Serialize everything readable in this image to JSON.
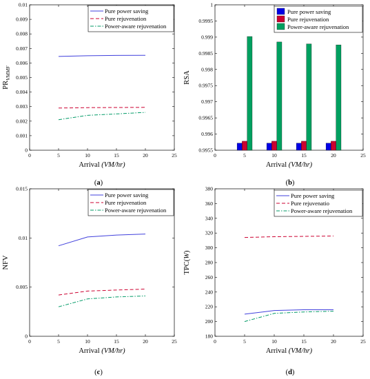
{
  "figure_caption_labels": [
    "(a)",
    "(b)",
    "(c)",
    "(d)"
  ],
  "chart_data": [
    {
      "panel": "(a)",
      "type": "line",
      "xlabel": "Arrival ",
      "xlabel_unit": "(VM/hr)",
      "ylabel_main": "PR",
      "ylabel_sub": "VMMF",
      "xlim": [
        0,
        25
      ],
      "ylim": [
        0,
        0.01
      ],
      "xticks": [
        0,
        5,
        10,
        15,
        20,
        25
      ],
      "xtick_labels": [
        "0",
        "5",
        "10",
        "15",
        "20",
        "25"
      ],
      "yticks": [
        0,
        0.001,
        0.002,
        0.003,
        0.004,
        0.005,
        0.006,
        0.007,
        0.008,
        0.009,
        0.01
      ],
      "ytick_labels": [
        "0",
        "0.001",
        "0.002",
        "0.003",
        "0.004",
        "0.005",
        "0.006",
        "0.007",
        "0.008",
        "0.009",
        "0.01"
      ],
      "legend": "top-right",
      "grid": false,
      "x": [
        5,
        10,
        15,
        20
      ],
      "series": [
        {
          "name": "Pure power saving",
          "values": [
            0.00645,
            0.0065,
            0.00652,
            0.00653
          ],
          "color": "#3f3fdc",
          "dash": "solid"
        },
        {
          "name": "Pure rejuvenation",
          "values": [
            0.0029,
            0.00293,
            0.00294,
            0.00295
          ],
          "color": "#cc0030",
          "dash": "dashed"
        },
        {
          "name": "Power-aware rejuvenation",
          "values": [
            0.0021,
            0.0024,
            0.0025,
            0.0026
          ],
          "color": "#009a66",
          "dash": "dashdot"
        }
      ]
    },
    {
      "panel": "(b)",
      "type": "bar",
      "xlabel": "Arrival ",
      "xlabel_unit": "(VM/hr)",
      "ylabel": "RSA",
      "xlim": [
        0,
        25
      ],
      "ylim": [
        0.9955,
        1
      ],
      "xticks": [
        0,
        5,
        10,
        15,
        20,
        25
      ],
      "xtick_labels": [
        "0",
        "5",
        "10",
        "15",
        "20",
        "25"
      ],
      "yticks": [
        0.9955,
        0.996,
        0.9965,
        0.997,
        0.9975,
        0.998,
        0.9985,
        0.999,
        0.9995,
        1
      ],
      "ytick_labels": [
        "0.9955",
        "0.996",
        "0.9965",
        "0.997",
        "0.9975",
        "0.998",
        "0.9985",
        "0.999",
        "0.9995",
        "1"
      ],
      "legend": "top-right",
      "grid": false,
      "x": [
        5,
        10,
        15,
        20
      ],
      "series": [
        {
          "name": "Pure power saving",
          "values": [
            0.99572,
            0.99572,
            0.99572,
            0.99572
          ],
          "color": "#0000e6"
        },
        {
          "name": "Pure rejuvenation",
          "values": [
            0.99578,
            0.99578,
            0.99578,
            0.99578
          ],
          "color": "#cc0030"
        },
        {
          "name": "Power-aware rejuvenation",
          "values": [
            0.99902,
            0.99885,
            0.99879,
            0.99876
          ],
          "color": "#00a060"
        }
      ]
    },
    {
      "panel": "(c)",
      "type": "line",
      "xlabel": "Arrival ",
      "xlabel_unit": "(VM/hr)",
      "ylabel": "NFV",
      "xlim": [
        0,
        25
      ],
      "ylim": [
        0,
        0.015
      ],
      "xticks": [
        0,
        5,
        10,
        15,
        20,
        25
      ],
      "xtick_labels": [
        "0",
        "5",
        "10",
        "15",
        "20",
        "25"
      ],
      "yticks": [
        0,
        0.005,
        0.01,
        0.015
      ],
      "ytick_labels": [
        "0",
        "0.005",
        "0.01",
        "0.015"
      ],
      "legend": "top-right",
      "grid": false,
      "x": [
        5,
        10,
        15,
        20
      ],
      "series": [
        {
          "name": "Pure power saving",
          "values": [
            0.0092,
            0.0101,
            0.0103,
            0.0104
          ],
          "color": "#3f3fdc",
          "dash": "solid"
        },
        {
          "name": "Pure rejuvenation",
          "values": [
            0.0042,
            0.0046,
            0.0047,
            0.0048
          ],
          "color": "#cc0030",
          "dash": "dashed"
        },
        {
          "name": "Power-aware rejuvenation",
          "values": [
            0.003,
            0.0038,
            0.004,
            0.0041
          ],
          "color": "#009a66",
          "dash": "dashdot"
        }
      ]
    },
    {
      "panel": "(d)",
      "type": "line",
      "xlabel": "Arrival ",
      "xlabel_unit": "(VM/hr)",
      "ylabel_main": "TPC(",
      "ylabel_italic": "W",
      "ylabel_end": ")",
      "xlim": [
        0,
        25
      ],
      "ylim": [
        180,
        380
      ],
      "xticks": [
        0,
        5,
        10,
        15,
        20,
        25
      ],
      "xtick_labels": [
        "0",
        "5",
        "10",
        "15",
        "20",
        "25"
      ],
      "yticks": [
        180,
        200,
        220,
        240,
        260,
        280,
        300,
        320,
        340,
        360,
        380
      ],
      "ytick_labels": [
        "180",
        "200",
        "220",
        "240",
        "260",
        "280",
        "300",
        "320",
        "340",
        "360",
        "380"
      ],
      "legend": "top-right",
      "grid": false,
      "x": [
        5,
        10,
        15,
        20
      ],
      "series": [
        {
          "name": "Pure power saving",
          "values": [
            210,
            215,
            216,
            216
          ],
          "color": "#3f3fdc",
          "dash": "solid"
        },
        {
          "name": "Pure rejuvenatio",
          "values": [
            314,
            315,
            315.5,
            316
          ],
          "color": "#cc0030",
          "dash": "dashed"
        },
        {
          "name": "Power-aware rejuvenation",
          "values": [
            200,
            211,
            213,
            214
          ],
          "color": "#009a66",
          "dash": "dashdot"
        }
      ]
    }
  ]
}
